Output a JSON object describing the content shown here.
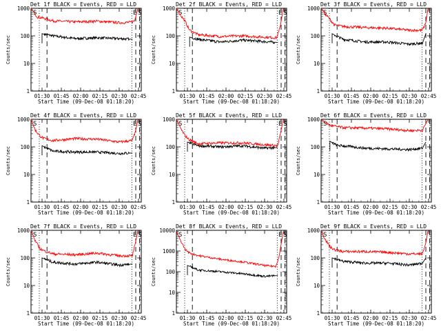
{
  "chart_data": [
    {
      "type": "line",
      "title": "Det 1f BLACK = Events, RED = LLD",
      "xlabel": "Start Time (09-Dec-08 01:18:20)",
      "ylabel": "Counts/sec",
      "yscale": "log",
      "ylim": [
        1,
        1000
      ],
      "x_ticks": [
        "01:30",
        "01:45",
        "02:00",
        "02:15",
        "02:30",
        "02:45"
      ],
      "y_ticks": [
        "1",
        "10",
        "100",
        "1000"
      ],
      "markers": [
        "S",
        "E",
        "S"
      ],
      "series": [
        {
          "color": "#000000",
          "key": [
            [
              0.1,
              120
            ],
            [
              0.2,
              100
            ],
            [
              0.4,
              80
            ],
            [
              0.6,
              85
            ],
            [
              0.8,
              80
            ],
            [
              0.92,
              75
            ]
          ]
        },
        {
          "color": "#ff0000",
          "key": [
            [
              0.0,
              1000
            ],
            [
              0.03,
              650
            ],
            [
              0.06,
              480
            ],
            [
              0.1,
              450
            ],
            [
              0.2,
              350
            ],
            [
              0.4,
              320
            ],
            [
              0.6,
              340
            ],
            [
              0.8,
              300
            ],
            [
              0.9,
              310
            ],
            [
              0.94,
              350
            ],
            [
              0.97,
              1000
            ]
          ]
        }
      ]
    },
    {
      "type": "line",
      "title": "Det 2f BLACK = Events, RED = LLD",
      "xlabel": "Start Time (09-Dec-08 01:18:20)",
      "ylabel": "Counts/sec",
      "yscale": "log",
      "ylim": [
        1,
        1000
      ],
      "x_ticks": [
        "01:30",
        "01:45",
        "02:00",
        "02:15",
        "02:30",
        "02:45"
      ],
      "y_ticks": [
        "1",
        "10",
        "100",
        "1000"
      ],
      "markers": [
        "S",
        "E",
        "S"
      ],
      "series": [
        {
          "color": "#000000",
          "key": [
            [
              0.12,
              90
            ],
            [
              0.2,
              75
            ],
            [
              0.4,
              60
            ],
            [
              0.6,
              70
            ],
            [
              0.8,
              62
            ],
            [
              0.92,
              58
            ]
          ]
        },
        {
          "color": "#ff0000",
          "key": [
            [
              0.0,
              1000
            ],
            [
              0.04,
              550
            ],
            [
              0.08,
              330
            ],
            [
              0.12,
              160
            ],
            [
              0.2,
              110
            ],
            [
              0.4,
              95
            ],
            [
              0.6,
              100
            ],
            [
              0.8,
              90
            ],
            [
              0.91,
              85
            ],
            [
              0.94,
              200
            ],
            [
              0.97,
              1000
            ]
          ]
        }
      ]
    },
    {
      "type": "line",
      "title": "Det 3f BLACK = Events, RED = LLD",
      "xlabel": "Start Time (09-Dec-08 01:18:20)",
      "ylabel": "Counts/sec",
      "yscale": "log",
      "ylim": [
        1,
        1000
      ],
      "x_ticks": [
        "01:30",
        "01:45",
        "02:00",
        "02:15",
        "02:30",
        "02:45"
      ],
      "y_ticks": [
        "1",
        "10",
        "100",
        "1000"
      ],
      "markers": [
        "S"
      ],
      "series": [
        {
          "color": "#000000",
          "key": [
            [
              0.1,
              120
            ],
            [
              0.2,
              75
            ],
            [
              0.4,
              60
            ],
            [
              0.6,
              60
            ],
            [
              0.8,
              50
            ],
            [
              0.92,
              55
            ],
            [
              0.95,
              120
            ]
          ]
        },
        {
          "color": "#ff0000",
          "key": [
            [
              0.0,
              1000
            ],
            [
              0.04,
              600
            ],
            [
              0.08,
              400
            ],
            [
              0.12,
              250
            ],
            [
              0.2,
              220
            ],
            [
              0.4,
              200
            ],
            [
              0.6,
              190
            ],
            [
              0.8,
              160
            ],
            [
              0.92,
              160
            ],
            [
              0.95,
              300
            ],
            [
              0.97,
              1000
            ]
          ]
        }
      ]
    },
    {
      "type": "line",
      "title": "Det 4f BLACK = Events, RED = LLD",
      "xlabel": "Start Time (09-Dec-08 01:18:20)",
      "ylabel": "Counts/sec",
      "yscale": "log",
      "ylim": [
        1,
        1000
      ],
      "x_ticks": [
        "01:30",
        "01:45",
        "02:00",
        "02:15",
        "02:30",
        "02:45"
      ],
      "y_ticks": [
        "1",
        "10",
        "100",
        "1000"
      ],
      "markers": [
        "S",
        "E",
        "S"
      ],
      "series": [
        {
          "color": "#000000",
          "key": [
            [
              0.1,
              110
            ],
            [
              0.2,
              70
            ],
            [
              0.4,
              65
            ],
            [
              0.6,
              65
            ],
            [
              0.8,
              58
            ],
            [
              0.92,
              60
            ]
          ]
        },
        {
          "color": "#ff0000",
          "key": [
            [
              0.0,
              1000
            ],
            [
              0.04,
              400
            ],
            [
              0.08,
              250
            ],
            [
              0.12,
              200
            ],
            [
              0.2,
              170
            ],
            [
              0.4,
              200
            ],
            [
              0.6,
              190
            ],
            [
              0.8,
              150
            ],
            [
              0.92,
              170
            ],
            [
              0.95,
              400
            ],
            [
              0.97,
              1000
            ]
          ]
        }
      ]
    },
    {
      "type": "line",
      "title": "Det 5f BLACK = Events, RED = LLD",
      "xlabel": "Start Time (09-Dec-08 01:18:20)",
      "ylabel": "Counts/sec",
      "yscale": "log",
      "ylim": [
        1,
        1000
      ],
      "x_ticks": [
        "01:30",
        "01:45",
        "02:00",
        "02:15",
        "02:30",
        "02:45"
      ],
      "y_ticks": [
        "1",
        "10",
        "100",
        "1000"
      ],
      "markers": [
        "S",
        "E",
        "S"
      ],
      "series": [
        {
          "color": "#000000",
          "key": [
            [
              0.1,
              150
            ],
            [
              0.2,
              110
            ],
            [
              0.4,
              100
            ],
            [
              0.6,
              110
            ],
            [
              0.8,
              90
            ],
            [
              0.92,
              95
            ]
          ]
        },
        {
          "color": "#ff0000",
          "key": [
            [
              0.0,
              1000
            ],
            [
              0.04,
              450
            ],
            [
              0.08,
              250
            ],
            [
              0.12,
              180
            ],
            [
              0.2,
              130
            ],
            [
              0.4,
              140
            ],
            [
              0.6,
              140
            ],
            [
              0.8,
              120
            ],
            [
              0.92,
              110
            ],
            [
              0.95,
              400
            ],
            [
              0.97,
              1000
            ]
          ]
        }
      ]
    },
    {
      "type": "line",
      "title": "Det 6f BLACK = Events, RED = LLD",
      "xlabel": "Start Time (09-Dec-08 01:18:20)",
      "ylabel": "Counts/sec",
      "yscale": "log",
      "ylim": [
        1,
        1000
      ],
      "x_ticks": [
        "01:30",
        "01:45",
        "02:00",
        "02:15",
        "02:30",
        "02:45"
      ],
      "y_ticks": [
        "1",
        "10",
        "100",
        "1000"
      ],
      "markers": [
        "S"
      ],
      "series": [
        {
          "color": "#000000",
          "key": [
            [
              0.08,
              160
            ],
            [
              0.14,
              115
            ],
            [
              0.4,
              90
            ],
            [
              0.6,
              85
            ],
            [
              0.8,
              80
            ],
            [
              0.92,
              90
            ],
            [
              0.95,
              150
            ]
          ]
        },
        {
          "color": "#ff0000",
          "key": [
            [
              0.0,
              1000
            ],
            [
              0.08,
              600
            ],
            [
              0.2,
              500
            ],
            [
              0.4,
              480
            ],
            [
              0.6,
              450
            ],
            [
              0.8,
              390
            ],
            [
              0.92,
              400
            ],
            [
              0.95,
              700
            ],
            [
              0.97,
              1000
            ]
          ]
        }
      ]
    },
    {
      "type": "line",
      "title": "Det 7f BLACK = Events, RED = LLD",
      "xlabel": "Start Time (09-Dec-08 01:18:20)",
      "ylabel": "Counts/sec",
      "yscale": "log",
      "ylim": [
        1,
        1000
      ],
      "x_ticks": [
        "01:30",
        "01:45",
        "02:00",
        "02:15",
        "02:30",
        "02:45"
      ],
      "y_ticks": [
        "1",
        "10",
        "100",
        "1000"
      ],
      "markers": [
        "S",
        "E",
        "S"
      ],
      "series": [
        {
          "color": "#000000",
          "key": [
            [
              0.1,
              100
            ],
            [
              0.2,
              70
            ],
            [
              0.4,
              60
            ],
            [
              0.6,
              70
            ],
            [
              0.8,
              55
            ],
            [
              0.92,
              60
            ]
          ]
        },
        {
          "color": "#ff0000",
          "key": [
            [
              0.0,
              1000
            ],
            [
              0.04,
              400
            ],
            [
              0.08,
              220
            ],
            [
              0.12,
              180
            ],
            [
              0.2,
              140
            ],
            [
              0.4,
              130
            ],
            [
              0.6,
              150
            ],
            [
              0.8,
              120
            ],
            [
              0.92,
              120
            ],
            [
              0.95,
              400
            ],
            [
              0.97,
              1000
            ]
          ]
        }
      ]
    },
    {
      "type": "line",
      "title": "Det 8f BLACK = Events, RED = LLD",
      "xlabel": "Start Time (09-Dec-08 01:18:20)",
      "ylabel": "Counts/sec",
      "yscale": "log",
      "ylim": [
        1,
        10000
      ],
      "x_ticks": [
        "01:30",
        "01:45",
        "02:00",
        "02:15",
        "02:30",
        "02:45"
      ],
      "y_ticks": [
        "1",
        "10",
        "100",
        "1000",
        "10000"
      ],
      "markers": [
        "S",
        "E",
        "S"
      ],
      "series": [
        {
          "color": "#000000",
          "key": [
            [
              0.1,
              200
            ],
            [
              0.2,
              120
            ],
            [
              0.4,
              100
            ],
            [
              0.6,
              80
            ],
            [
              0.8,
              60
            ],
            [
              0.92,
              65
            ]
          ]
        },
        {
          "color": "#ff0000",
          "key": [
            [
              0.0,
              9000
            ],
            [
              0.04,
              3000
            ],
            [
              0.08,
              1200
            ],
            [
              0.12,
              800
            ],
            [
              0.2,
              600
            ],
            [
              0.4,
              400
            ],
            [
              0.6,
              300
            ],
            [
              0.8,
              200
            ],
            [
              0.9,
              180
            ],
            [
              0.93,
              500
            ],
            [
              0.97,
              9000
            ]
          ]
        }
      ]
    },
    {
      "type": "line",
      "title": "Det 9f BLACK = Events, RED = LLD",
      "xlabel": "Start Time (09-Dec-08 01:18:20)",
      "ylabel": "Counts/sec",
      "yscale": "log",
      "ylim": [
        1,
        1000
      ],
      "x_ticks": [
        "01:30",
        "01:45",
        "02:00",
        "02:15",
        "02:30",
        "02:45"
      ],
      "y_ticks": [
        "1",
        "10",
        "100",
        "1000"
      ],
      "markers": [
        "S"
      ],
      "series": [
        {
          "color": "#000000",
          "key": [
            [
              0.1,
              100
            ],
            [
              0.2,
              75
            ],
            [
              0.4,
              65
            ],
            [
              0.6,
              65
            ],
            [
              0.8,
              55
            ],
            [
              0.92,
              65
            ],
            [
              0.95,
              100
            ]
          ]
        },
        {
          "color": "#ff0000",
          "key": [
            [
              0.0,
              1000
            ],
            [
              0.04,
              450
            ],
            [
              0.08,
              250
            ],
            [
              0.12,
              200
            ],
            [
              0.2,
              170
            ],
            [
              0.4,
              170
            ],
            [
              0.6,
              160
            ],
            [
              0.8,
              140
            ],
            [
              0.92,
              140
            ],
            [
              0.95,
              350
            ],
            [
              0.97,
              1000
            ]
          ]
        }
      ]
    }
  ]
}
